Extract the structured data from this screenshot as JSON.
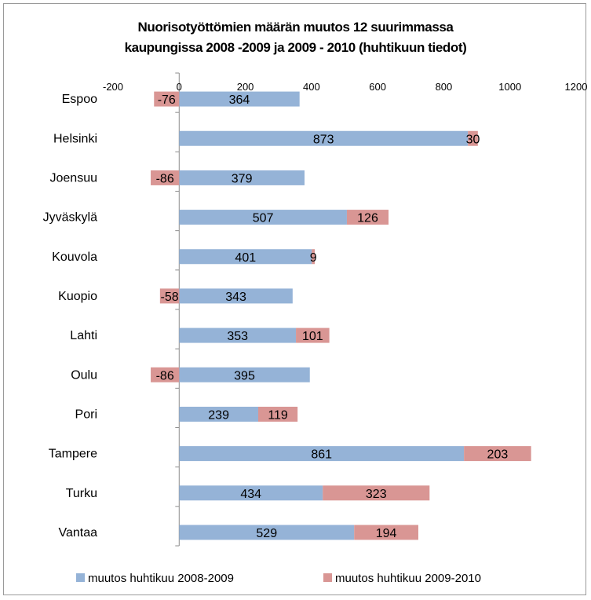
{
  "chart_data": {
    "type": "bar",
    "orientation": "horizontal",
    "stacked": true,
    "title": [
      "Nuorisotyöttömien määrän muutos 12 suurimmassa",
      "kaupungissa 2008 -2009 ja 2009 - 2010 (huhtikuun tiedot)"
    ],
    "categories": [
      "Espoo",
      "Helsinki",
      "Joensuu",
      "Jyväskylä",
      "Kouvola",
      "Kuopio",
      "Lahti",
      "Oulu",
      "Pori",
      "Tampere",
      "Turku",
      "Vantaa"
    ],
    "series": [
      {
        "name": "muutos huhtikuu 2008-2009",
        "color": "#95b3d7",
        "values": [
          364,
          873,
          379,
          507,
          401,
          343,
          353,
          395,
          239,
          861,
          434,
          529
        ]
      },
      {
        "name": "muutos huhtikuu 2009-2010",
        "color": "#d99694",
        "values": [
          -76,
          30,
          -86,
          126,
          9,
          -58,
          101,
          -86,
          119,
          203,
          323,
          194
        ]
      }
    ],
    "xlim": [
      -200,
      1200
    ],
    "xticks": [
      -200,
      0,
      200,
      400,
      600,
      800,
      1000,
      1200
    ],
    "axis_position": "top",
    "grid": false,
    "legend_position": "bottom",
    "data_labels": true
  }
}
